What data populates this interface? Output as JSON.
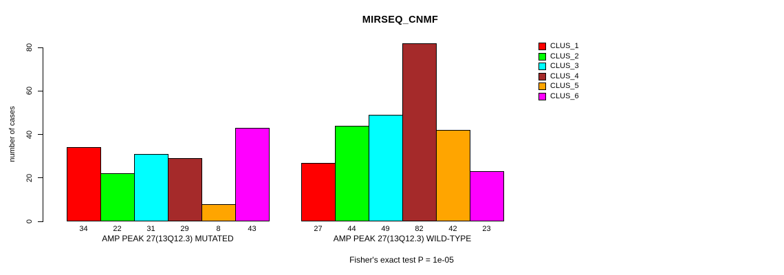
{
  "title": "MIRSEQ_CNMF",
  "chart_data": {
    "type": "bar",
    "title": "MIRSEQ_CNMF",
    "xlabel": "",
    "ylabel": "number of cases",
    "ylim": [
      0,
      80
    ],
    "yticks": [
      0,
      20,
      40,
      60,
      80
    ],
    "grid": false,
    "legend_position": "right",
    "groups": [
      {
        "label": "AMP PEAK 27(13Q12.3) MUTATED",
        "values": [
          34,
          22,
          31,
          29,
          8,
          43
        ]
      },
      {
        "label": "AMP PEAK 27(13Q12.3) WILD-TYPE",
        "values": [
          27,
          44,
          49,
          82,
          42,
          23
        ]
      }
    ],
    "series": [
      {
        "name": "CLUS_1",
        "color": "#FF0000",
        "values": [
          34,
          27
        ]
      },
      {
        "name": "CLUS_2",
        "color": "#00FF00",
        "values": [
          22,
          44
        ]
      },
      {
        "name": "CLUS_3",
        "color": "#00FFFF",
        "values": [
          31,
          49
        ]
      },
      {
        "name": "CLUS_4",
        "color": "#A52A2A",
        "values": [
          29,
          82
        ]
      },
      {
        "name": "CLUS_5",
        "color": "#FFA500",
        "values": [
          8,
          42
        ]
      },
      {
        "name": "CLUS_6",
        "color": "#FF00FF",
        "values": [
          43,
          23
        ]
      }
    ],
    "legend": [
      {
        "label": "CLUS_1",
        "color": "#FF0000"
      },
      {
        "label": "CLUS_2",
        "color": "#00FF00"
      },
      {
        "label": "CLUS_3",
        "color": "#00FFFF"
      },
      {
        "label": "CLUS_4",
        "color": "#A52A2A"
      },
      {
        "label": "CLUS_5",
        "color": "#FFA500"
      },
      {
        "label": "CLUS_6",
        "color": "#FF00FF"
      }
    ],
    "annotation": "Fisher's exact test P = 1e-05",
    "bar_border_color": "#000000",
    "background_color": "#FFFFFF"
  }
}
